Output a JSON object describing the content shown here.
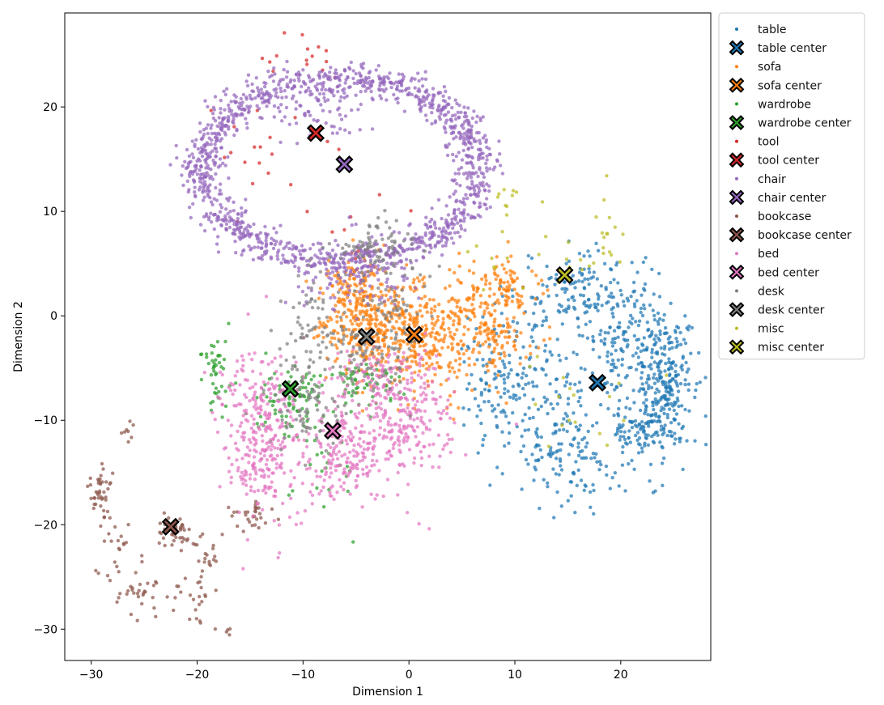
{
  "chart_data": {
    "type": "scatter",
    "title": "",
    "xlabel": "Dimension 1",
    "ylabel": "Dimension 2",
    "xlim": [
      -32.5,
      28.5
    ],
    "ylim": [
      -33,
      29
    ],
    "xticks": [
      -30,
      -20,
      -10,
      0,
      10,
      20
    ],
    "yticks": [
      -30,
      -20,
      -10,
      0,
      10,
      20
    ],
    "xtick_labels": [
      "−30",
      "−20",
      "−10",
      "0",
      "10",
      "20"
    ],
    "ytick_labels": [
      "−30",
      "−20",
      "−10",
      "0",
      "10",
      "20"
    ],
    "legend_position": "outside-top-right",
    "point_seed": 7,
    "series": [
      {
        "name": "table",
        "center_label": "table center",
        "color": "#1f77b4",
        "center": [
          17.8,
          -6.4
        ],
        "clusters": [
          {
            "cx": 24,
            "cy": -7,
            "sx": 1.3,
            "sy": 3.5,
            "n": 260
          },
          {
            "cx": 21,
            "cy": -2,
            "sx": 2.5,
            "sy": 3.0,
            "n": 160
          },
          {
            "cx": 16,
            "cy": 2,
            "sx": 3.0,
            "sy": 2.2,
            "n": 140
          },
          {
            "cx": 12,
            "cy": -8,
            "sx": 3.0,
            "sy": 4.0,
            "n": 160
          },
          {
            "cx": 16,
            "cy": -14,
            "sx": 2.5,
            "sy": 2.5,
            "n": 90
          },
          {
            "cx": 8,
            "cy": -6,
            "sx": 2.0,
            "sy": 3.0,
            "n": 70
          },
          {
            "cx": 22,
            "cy": -11,
            "sx": 1.5,
            "sy": 1.5,
            "n": 80
          }
        ]
      },
      {
        "name": "sofa",
        "center_label": "sofa center",
        "color": "#ff7f0e",
        "center": [
          0.5,
          -1.8
        ],
        "clusters": [
          {
            "cx": -4,
            "cy": -1,
            "sx": 2.5,
            "sy": 2.5,
            "n": 280
          },
          {
            "cx": 1,
            "cy": -2,
            "sx": 2.5,
            "sy": 2.5,
            "n": 260
          },
          {
            "cx": 7,
            "cy": -0.5,
            "sx": 2.5,
            "sy": 2.5,
            "n": 200
          },
          {
            "cx": -5,
            "cy": 3,
            "sx": 1.5,
            "sy": 2.0,
            "n": 90
          },
          {
            "cx": 9,
            "cy": 3,
            "sx": 1.5,
            "sy": 1.2,
            "n": 60
          }
        ]
      },
      {
        "name": "wardrobe",
        "center_label": "wardrobe center",
        "color": "#2ca02c",
        "center": [
          -11.2,
          -7.0
        ],
        "clusters": [
          {
            "cx": -18,
            "cy": -5,
            "sx": 0.7,
            "sy": 1.8,
            "n": 45
          },
          {
            "cx": -11,
            "cy": -8,
            "sx": 1.6,
            "sy": 1.6,
            "n": 90
          },
          {
            "cx": -4,
            "cy": -6.5,
            "sx": 1.5,
            "sy": 1.2,
            "n": 60
          },
          {
            "cx": -8,
            "cy": -14,
            "sx": 2.0,
            "sy": 3.0,
            "n": 25
          }
        ]
      },
      {
        "name": "tool",
        "center_label": "tool center",
        "color": "#d62728",
        "center": [
          -8.8,
          17.5
        ],
        "clusters": [
          {
            "cx": -10,
            "cy": 24.5,
            "sx": 1.8,
            "sy": 1.2,
            "n": 14
          },
          {
            "cx": -12,
            "cy": 16,
            "sx": 3.5,
            "sy": 4.0,
            "n": 14
          },
          {
            "cx": -5,
            "cy": 10,
            "sx": 3.0,
            "sy": 3.0,
            "n": 10
          },
          {
            "cx": -17,
            "cy": 17,
            "sx": 1.0,
            "sy": 2.0,
            "n": 4
          }
        ]
      },
      {
        "name": "chair",
        "center_label": "chair center",
        "color": "#9467bd",
        "center": [
          -6.1,
          14.5
        ],
        "clusters": [
          {
            "ring": true,
            "cx": -6.5,
            "cy": 14,
            "rx": 13,
            "ry": 8.8,
            "spread": 1.1,
            "n": 1300
          },
          {
            "cx": -5,
            "cy": 4,
            "sx": 3.0,
            "sy": 2.0,
            "n": 120
          },
          {
            "cx": -8.5,
            "cy": 20,
            "sx": 2.5,
            "sy": 1.5,
            "n": 80
          }
        ]
      },
      {
        "name": "bookcase",
        "center_label": "bookcase center",
        "color": "#8c564b",
        "center": [
          -22.5,
          -20.2
        ],
        "clusters": [
          {
            "cx": -29,
            "cy": -17.5,
            "sx": 0.6,
            "sy": 1.5,
            "n": 45
          },
          {
            "cx": -25.5,
            "cy": -26,
            "sx": 1.5,
            "sy": 1.2,
            "n": 35
          },
          {
            "cx": -22,
            "cy": -21,
            "sx": 1.0,
            "sy": 1.0,
            "n": 40
          },
          {
            "cx": -20,
            "cy": -27,
            "sx": 1.0,
            "sy": 1.2,
            "n": 22
          },
          {
            "cx": -15,
            "cy": -19,
            "sx": 1.2,
            "sy": 0.8,
            "n": 30
          },
          {
            "cx": -18.5,
            "cy": -23.5,
            "sx": 0.7,
            "sy": 1.2,
            "n": 18
          },
          {
            "cx": -27.5,
            "cy": -22,
            "sx": 0.6,
            "sy": 1.5,
            "n": 14
          },
          {
            "cx": -26.5,
            "cy": -11,
            "sx": 0.4,
            "sy": 1.0,
            "n": 8
          },
          {
            "cx": -17,
            "cy": -30.3,
            "sx": 0.2,
            "sy": 0.2,
            "n": 4
          }
        ]
      },
      {
        "name": "bed",
        "center_label": "bed center",
        "color": "#e377c2",
        "center": [
          -7.2,
          -11.0
        ],
        "clusters": [
          {
            "cx": -14,
            "cy": -11,
            "sx": 2.0,
            "sy": 4.0,
            "n": 330
          },
          {
            "cx": -6,
            "cy": -13,
            "sx": 2.2,
            "sy": 2.5,
            "n": 200
          },
          {
            "cx": 0,
            "cy": -10,
            "sx": 2.2,
            "sy": 3.0,
            "n": 220
          },
          {
            "cx": -3,
            "cy": -5.5,
            "sx": 2.0,
            "sy": 1.5,
            "n": 80
          }
        ]
      },
      {
        "name": "desk",
        "center_label": "desk center",
        "color": "#7f7f7f",
        "center": [
          -4.0,
          -2.0
        ],
        "clusters": [
          {
            "cx": -3,
            "cy": 6.5,
            "sx": 2.5,
            "sy": 1.2,
            "n": 90
          },
          {
            "cx": -9,
            "cy": -2,
            "sx": 2.0,
            "sy": 3.0,
            "n": 80
          },
          {
            "cx": -3,
            "cy": -4,
            "sx": 2.0,
            "sy": 2.0,
            "n": 80
          },
          {
            "cx": -9,
            "cy": -9,
            "sx": 2.0,
            "sy": 2.0,
            "n": 60
          },
          {
            "cx": -1.5,
            "cy": 1,
            "sx": 1.5,
            "sy": 1.5,
            "n": 40
          }
        ]
      },
      {
        "name": "misc",
        "center_label": "misc center",
        "color": "#bcbd22",
        "center": [
          14.7,
          3.9
        ],
        "clusters": [
          {
            "cx": 10,
            "cy": 11,
            "sx": 1.5,
            "sy": 1.2,
            "n": 10
          },
          {
            "cx": 18.5,
            "cy": 8.5,
            "sx": 1.2,
            "sy": 2.0,
            "n": 16
          },
          {
            "cx": 14.5,
            "cy": 6,
            "sx": 2.5,
            "sy": 2.5,
            "n": 12
          },
          {
            "cx": 17,
            "cy": -7,
            "sx": 3.0,
            "sy": 3.0,
            "n": 18
          },
          {
            "cx": 7.5,
            "cy": 6,
            "sx": 1.0,
            "sy": 2.0,
            "n": 8
          }
        ]
      }
    ]
  }
}
